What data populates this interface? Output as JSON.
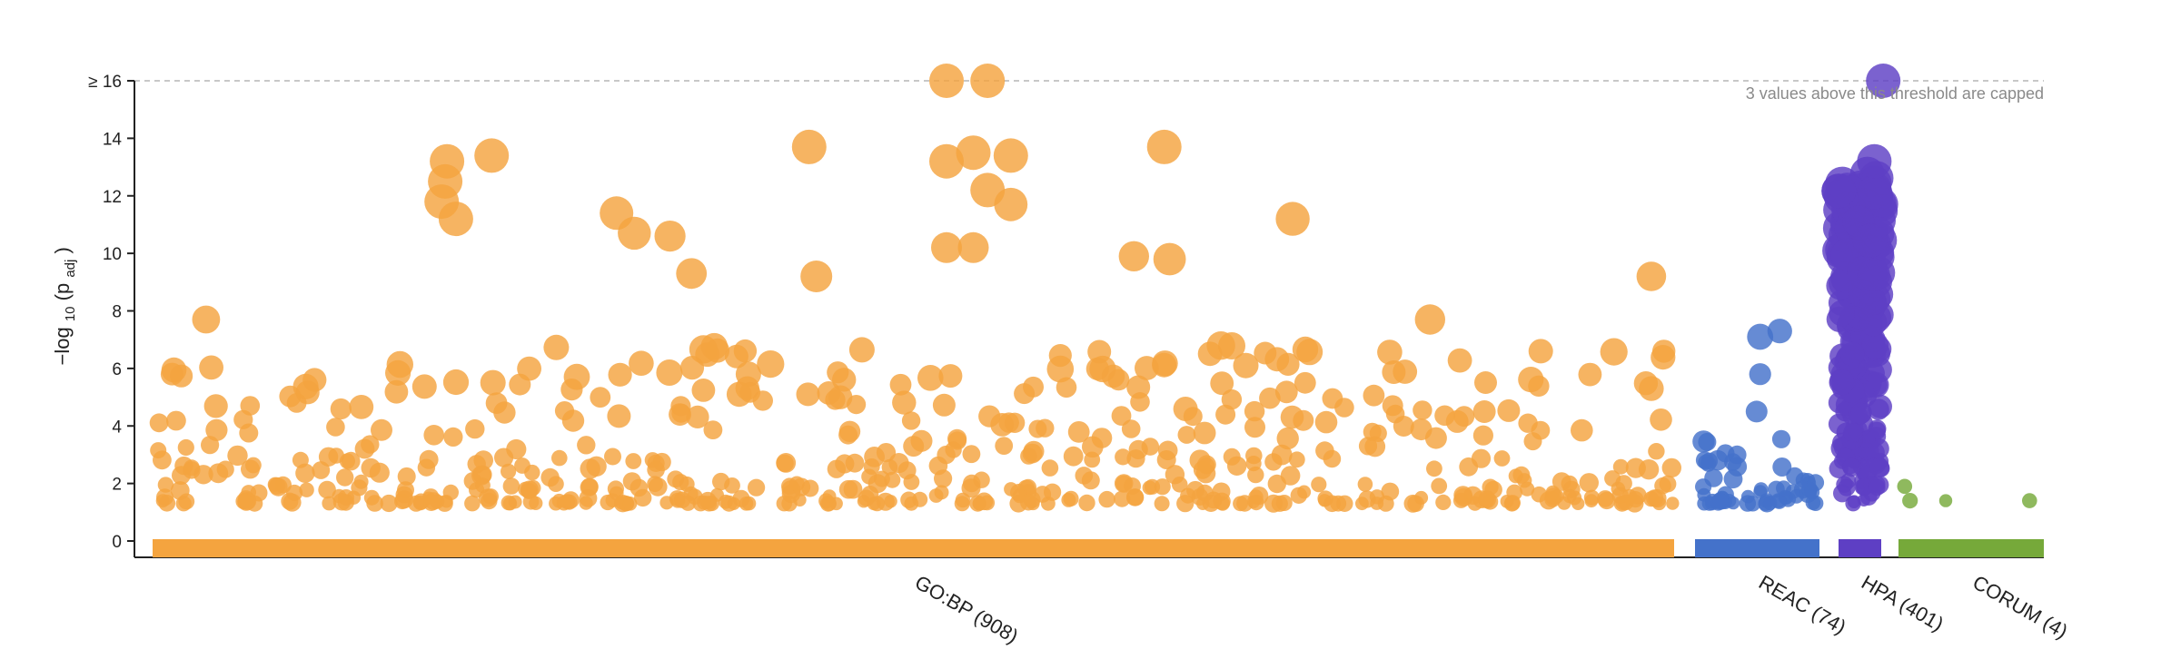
{
  "chart_data": {
    "type": "scatter",
    "ylabel_main": "−log",
    "ylabel_sub": "10",
    "ylabel_p": "(p",
    "ylabel_psub": "adj",
    "ylabel_close": ")",
    "ylim": [
      0,
      16
    ],
    "yticks": [
      0,
      2,
      4,
      6,
      8,
      10,
      12,
      14
    ],
    "ytick_labels": [
      "0",
      "2",
      "4",
      "6",
      "8",
      "10",
      "12",
      "14"
    ],
    "cap_label": "≥ 16",
    "cap_note": "3 values above this threshold are capped",
    "grid": false,
    "categories": [
      {
        "key": "gobp",
        "label": "GO:BP (908)",
        "color": "#F4A43F",
        "count": 908
      },
      {
        "key": "reac",
        "label": "REAC (74)",
        "color": "#4472CA",
        "count": 74
      },
      {
        "key": "hpa",
        "label": "HPA (401)",
        "color": "#5E3FC4",
        "count": 401
      },
      {
        "key": "corum",
        "label": "CORUM (4)",
        "color": "#76A93A",
        "count": 4
      }
    ],
    "highlighted_points": [
      {
        "group": "gobp",
        "x": 3.0,
        "y": 7.7
      },
      {
        "group": "gobp",
        "x": 16.5,
        "y": 13.2
      },
      {
        "group": "gobp",
        "x": 16.4,
        "y": 12.5
      },
      {
        "group": "gobp",
        "x": 16.2,
        "y": 11.8
      },
      {
        "group": "gobp",
        "x": 17.0,
        "y": 11.2
      },
      {
        "group": "gobp",
        "x": 19.0,
        "y": 13.4
      },
      {
        "group": "gobp",
        "x": 26.0,
        "y": 11.4
      },
      {
        "group": "gobp",
        "x": 27.0,
        "y": 10.7
      },
      {
        "group": "gobp",
        "x": 29.0,
        "y": 10.6
      },
      {
        "group": "gobp",
        "x": 30.2,
        "y": 9.3
      },
      {
        "group": "gobp",
        "x": 44.5,
        "y": 16.0
      },
      {
        "group": "gobp",
        "x": 46.8,
        "y": 16.0
      },
      {
        "group": "gobp",
        "x": 44.5,
        "y": 13.2
      },
      {
        "group": "gobp",
        "x": 46.0,
        "y": 13.5
      },
      {
        "group": "gobp",
        "x": 48.1,
        "y": 13.4
      },
      {
        "group": "gobp",
        "x": 46.8,
        "y": 12.2
      },
      {
        "group": "gobp",
        "x": 48.1,
        "y": 11.7
      },
      {
        "group": "gobp",
        "x": 44.5,
        "y": 10.2
      },
      {
        "group": "gobp",
        "x": 46.0,
        "y": 10.2
      },
      {
        "group": "gobp",
        "x": 36.8,
        "y": 13.7
      },
      {
        "group": "gobp",
        "x": 37.2,
        "y": 9.2
      },
      {
        "group": "gobp",
        "x": 56.7,
        "y": 13.7
      },
      {
        "group": "gobp",
        "x": 55.0,
        "y": 9.9
      },
      {
        "group": "gobp",
        "x": 57.0,
        "y": 9.8
      },
      {
        "group": "gobp",
        "x": 63.9,
        "y": 11.2
      },
      {
        "group": "gobp",
        "x": 71.6,
        "y": 7.7
      },
      {
        "group": "gobp",
        "x": 84.0,
        "y": 9.2
      },
      {
        "group": "gobp",
        "x": 84.0,
        "y": 5.3
      },
      {
        "group": "reac",
        "x": 90.1,
        "y": 7.1
      },
      {
        "group": "reac",
        "x": 91.2,
        "y": 7.3
      },
      {
        "group": "reac",
        "x": 90.1,
        "y": 5.8
      },
      {
        "group": "reac",
        "x": 89.9,
        "y": 4.5
      },
      {
        "group": "hpa",
        "x": 97.0,
        "y": 16.0
      },
      {
        "group": "hpa",
        "x": 96.5,
        "y": 13.2
      },
      {
        "group": "corum",
        "x": 98.2,
        "y": 1.9
      },
      {
        "group": "corum",
        "x": 98.5,
        "y": 1.4
      },
      {
        "group": "corum",
        "x": 100.5,
        "y": 1.4
      },
      {
        "group": "corum",
        "x": 105.2,
        "y": 1.4
      }
    ]
  }
}
